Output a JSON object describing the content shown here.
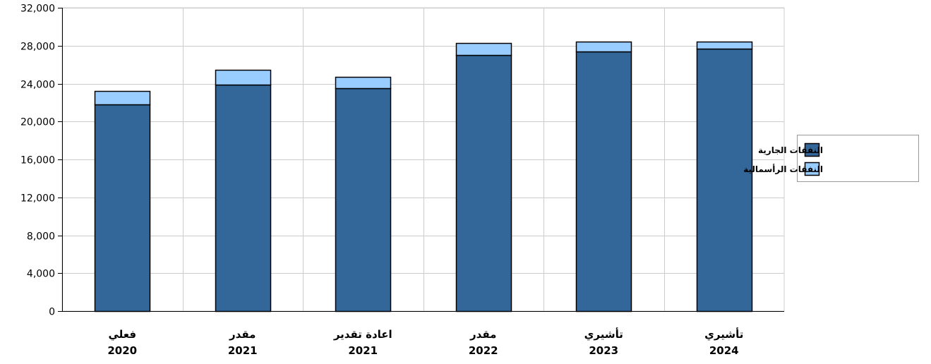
{
  "chart_data": {
    "type": "bar",
    "stacked": true,
    "categories": [
      {
        "label": "فعلي",
        "year": "2020"
      },
      {
        "label": "مقدر",
        "year": "2021"
      },
      {
        "label": "اعادة تقدير",
        "year": "2021"
      },
      {
        "label": "مقدر",
        "year": "2022"
      },
      {
        "label": "تأشيري",
        "year": "2023"
      },
      {
        "label": "تأشيري",
        "year": "2024"
      }
    ],
    "series": [
      {
        "name": "النفقات الجارية",
        "color": "#336699",
        "values": [
          21800,
          23900,
          23500,
          27050,
          27350,
          27650
        ]
      },
      {
        "name": "النفقات الرأسمالية",
        "color": "#99ccff",
        "values": [
          1400,
          1550,
          1200,
          1200,
          1050,
          750
        ]
      }
    ],
    "ylim": [
      0,
      32000
    ],
    "yticks": [
      "0",
      "4,000",
      "8,000",
      "12,000",
      "16,000",
      "20,000",
      "24,000",
      "28,000",
      "32,000"
    ],
    "grid": true,
    "legend_position": "right"
  }
}
